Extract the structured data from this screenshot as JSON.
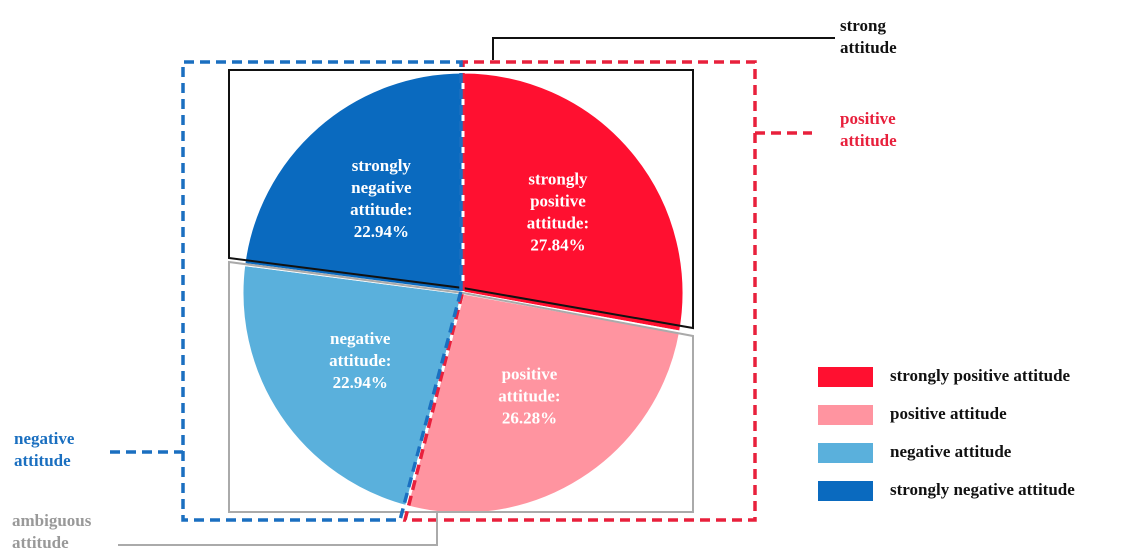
{
  "chart_data": {
    "type": "pie",
    "categories": [
      "strongly positive attitude",
      "positive attitude",
      "negative attitude",
      "strongly negative attitude"
    ],
    "labels": [
      "strongly positive attitude:",
      "positive attitude:",
      "negative attitude:",
      "strongly negative attitude:"
    ],
    "values": [
      27.84,
      26.28,
      22.94,
      22.94
    ],
    "value_labels": [
      "27.84%",
      "26.28%",
      "22.94%",
      "22.94%"
    ],
    "colors": [
      "#ff1030",
      "#ff94a0",
      "#5ab0dc",
      "#0a6abf"
    ],
    "annotations": {
      "strong": "strong attitude",
      "positive": "positive attitude",
      "negative": "negative attitude",
      "ambiguous": "ambiguous attitude"
    }
  }
}
